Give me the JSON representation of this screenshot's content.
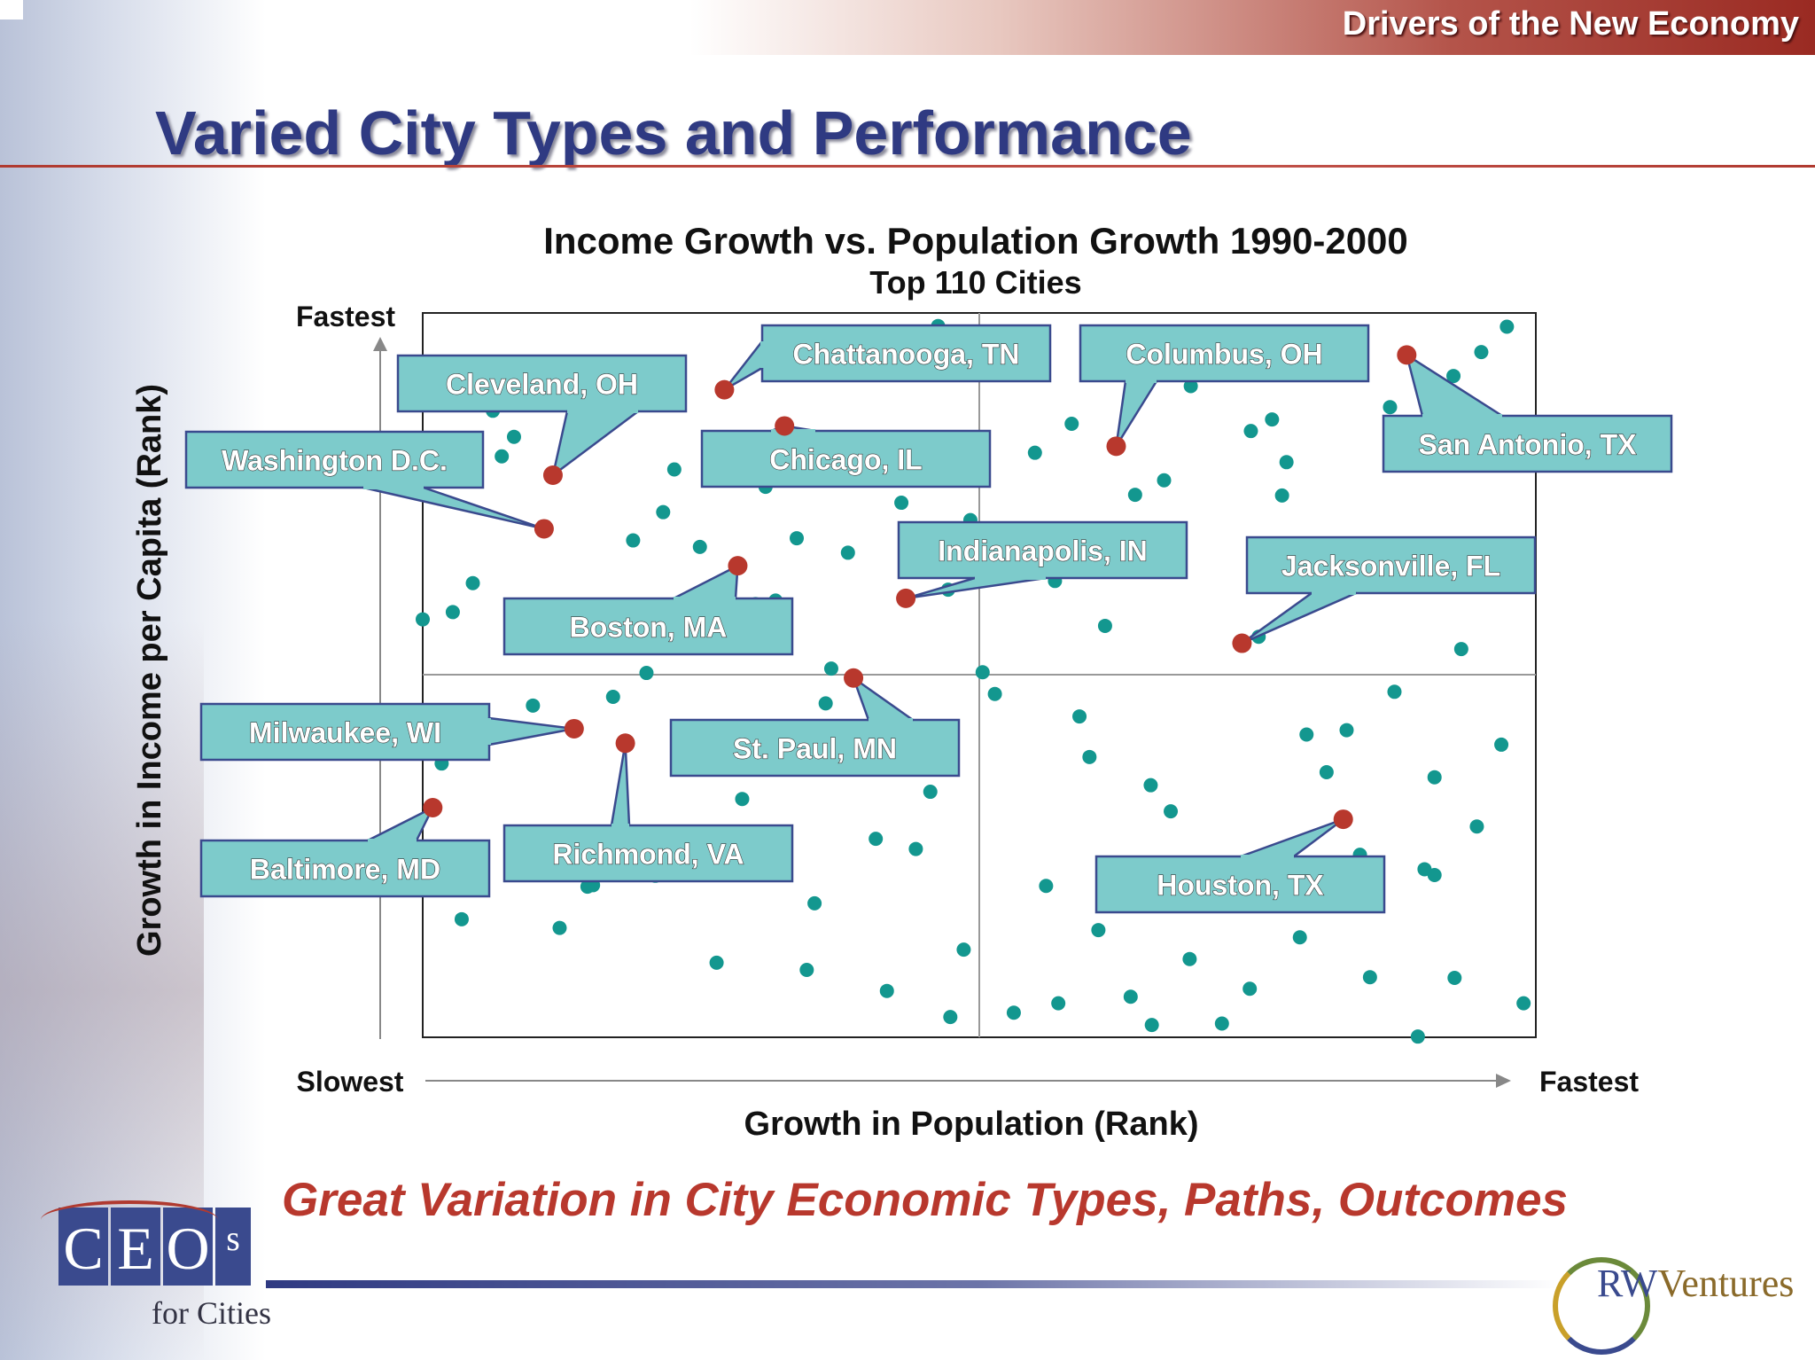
{
  "header": {
    "title": "Drivers of the New Economy"
  },
  "slide": {
    "title": "Varied City Types and Performance",
    "tagline": "Great Variation in City Economic Types, Paths, Outcomes"
  },
  "logos": {
    "left": {
      "letters": [
        "C",
        "E",
        "O",
        "s"
      ],
      "subtitle": "for Cities"
    },
    "right": {
      "prefix": "RW",
      "suffix": "Ventures"
    }
  },
  "colors": {
    "title": "#2f3a82",
    "highlight_dot": "#b8382d",
    "city_dot": "#13978f",
    "callout_fill": "#7dcbcb",
    "callout_border": "#3a4a8e",
    "tagline": "#b8382d"
  },
  "chart_data": {
    "type": "scatter",
    "title": "Income Growth vs. Population Growth 1990-2000",
    "subtitle": "Top 110 Cities",
    "xlabel": "Growth in Population (Rank)",
    "ylabel": "Growth in Income per Capita (Rank)",
    "x_axis_ends": {
      "low": "Slowest",
      "high": "Fastest"
    },
    "y_axis_ends": {
      "low": "",
      "high": "Fastest"
    },
    "xlim": [
      0,
      100
    ],
    "ylim": [
      0,
      100
    ],
    "grid": false,
    "quadrant_dividers": {
      "x": 50,
      "y": 50
    },
    "highlighted_cities": [
      {
        "name": "Washington D.C.",
        "x": 10.9,
        "y": 70.2
      },
      {
        "name": "Cleveland, OH",
        "x": 11.7,
        "y": 77.6
      },
      {
        "name": "Chattanooga, TN",
        "x": 27.1,
        "y": 89.4
      },
      {
        "name": "Chicago, IL",
        "x": 32.5,
        "y": 84.4
      },
      {
        "name": "Columbus, OH",
        "x": 62.3,
        "y": 81.6
      },
      {
        "name": "San Antonio, TX",
        "x": 88.4,
        "y": 94.2
      },
      {
        "name": "Boston, MA",
        "x": 28.3,
        "y": 65.1
      },
      {
        "name": "Indianapolis, IN",
        "x": 43.4,
        "y": 60.6
      },
      {
        "name": "Jacksonville, FL",
        "x": 73.6,
        "y": 54.4
      },
      {
        "name": "St. Paul, MN",
        "x": 38.7,
        "y": 49.6
      },
      {
        "name": "Milwaukee, WI",
        "x": 13.6,
        "y": 42.6
      },
      {
        "name": "Richmond, VA",
        "x": 18.2,
        "y": 40.6
      },
      {
        "name": "Baltimore, MD",
        "x": 0.9,
        "y": 31.7
      },
      {
        "name": "Houston, TX",
        "x": 82.7,
        "y": 30.1
      }
    ],
    "other_cities": [
      [
        46.3,
        98.2
      ],
      [
        40.1,
        97.0
      ],
      [
        55.4,
        96.5
      ],
      [
        54.9,
        95.6
      ],
      [
        97.4,
        98.1
      ],
      [
        95.1,
        94.6
      ],
      [
        92.6,
        91.3
      ],
      [
        5.4,
        92.3
      ],
      [
        6.3,
        86.5
      ],
      [
        8.2,
        82.9
      ],
      [
        7.1,
        80.2
      ],
      [
        22.6,
        78.4
      ],
      [
        30.8,
        76.0
      ],
      [
        21.6,
        72.5
      ],
      [
        18.9,
        68.6
      ],
      [
        24.9,
        67.7
      ],
      [
        33.6,
        68.9
      ],
      [
        38.2,
        66.9
      ],
      [
        43.0,
        73.8
      ],
      [
        49.2,
        71.4
      ],
      [
        55.0,
        80.7
      ],
      [
        58.3,
        84.7
      ],
      [
        69.0,
        89.9
      ],
      [
        64.0,
        74.9
      ],
      [
        66.6,
        76.9
      ],
      [
        74.4,
        83.7
      ],
      [
        76.3,
        85.3
      ],
      [
        77.6,
        79.4
      ],
      [
        77.2,
        74.8
      ],
      [
        86.9,
        87.0
      ],
      [
        99.1,
        63.5
      ],
      [
        4.5,
        62.7
      ],
      [
        0,
        57.7
      ],
      [
        2.7,
        58.7
      ],
      [
        29.9,
        59.8
      ],
      [
        31.7,
        60.3
      ],
      [
        47.2,
        61.8
      ],
      [
        56.8,
        63.0
      ],
      [
        61.3,
        56.8
      ],
      [
        75.1,
        55.3
      ],
      [
        93.3,
        53.6
      ],
      [
        20.1,
        50.3
      ],
      [
        36.7,
        50.9
      ],
      [
        50.3,
        50.4
      ],
      [
        51.4,
        47.4
      ],
      [
        87.3,
        47.7
      ],
      [
        9.9,
        45.8
      ],
      [
        17.1,
        47.0
      ],
      [
        36.2,
        46.1
      ],
      [
        59.0,
        44.3
      ],
      [
        59.9,
        38.7
      ],
      [
        79.4,
        41.8
      ],
      [
        83.0,
        42.4
      ],
      [
        81.2,
        36.6
      ],
      [
        90.9,
        35.9
      ],
      [
        96.9,
        40.4
      ],
      [
        1.7,
        37.8
      ],
      [
        23.5,
        37.6
      ],
      [
        28.7,
        32.9
      ],
      [
        45.6,
        33.9
      ],
      [
        65.4,
        34.8
      ],
      [
        67.2,
        31.2
      ],
      [
        94.7,
        29.1
      ],
      [
        40.7,
        27.4
      ],
      [
        44.3,
        26.0
      ],
      [
        8.9,
        27.0
      ],
      [
        15.3,
        21.0
      ],
      [
        20.9,
        22.3
      ],
      [
        56.0,
        20.9
      ],
      [
        84.2,
        25.2
      ],
      [
        3.5,
        16.3
      ],
      [
        14.8,
        20.8
      ],
      [
        12.3,
        15.1
      ],
      [
        35.2,
        18.5
      ],
      [
        72.5,
        19.0
      ],
      [
        76.4,
        19.6
      ],
      [
        90.0,
        23.2
      ],
      [
        90.9,
        22.4
      ],
      [
        60.7,
        14.8
      ],
      [
        78.8,
        13.8
      ],
      [
        26.4,
        10.3
      ],
      [
        34.5,
        9.3
      ],
      [
        41.7,
        6.4
      ],
      [
        48.6,
        12.1
      ],
      [
        68.9,
        10.8
      ],
      [
        57.1,
        4.7
      ],
      [
        63.6,
        5.6
      ],
      [
        47.4,
        2.8
      ],
      [
        53.1,
        3.4
      ],
      [
        65.5,
        1.7
      ],
      [
        71.8,
        1.9
      ],
      [
        74.3,
        6.7
      ],
      [
        85.1,
        8.3
      ],
      [
        92.7,
        8.2
      ],
      [
        98.9,
        4.7
      ],
      [
        89.4,
        0.1
      ]
    ]
  }
}
